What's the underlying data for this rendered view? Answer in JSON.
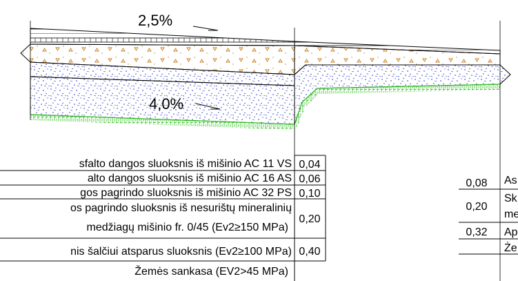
{
  "slopes": {
    "top": "2,5%",
    "bottom": "4,0%"
  },
  "left_table": {
    "rows": [
      {
        "lines": [
          "sfalto dangos sluoksnis iš mišinio  AC 11 VS"
        ],
        "value": "0,04"
      },
      {
        "lines": [
          "alto dangos sluoksnis iš mišinio  AC 16 AS"
        ],
        "value": "0,06"
      },
      {
        "lines": [
          "gos pagrindo sluoksnis iš mišinio  AC 32 PS"
        ],
        "value": "0,10"
      },
      {
        "lines": [
          "os pagrindo sluoksnis iš nesurištų mineralinių",
          "medžiagų mišinio fr. 0/45 (Ev2≥150 MPa)"
        ],
        "value": "0,20"
      },
      {
        "lines": [
          "nis šalčiui atsparus sluoksnis (Ev2≥100 MPa)"
        ],
        "value": "0,40"
      },
      {
        "lines": [
          "Žemės sankasa (EV2>45 MPa)"
        ],
        "value": ""
      }
    ]
  },
  "right_table": {
    "rows": [
      {
        "value": "0,08",
        "lines": [
          "As"
        ]
      },
      {
        "value": "0,20",
        "lines": [
          "Sk",
          "me"
        ]
      },
      {
        "value": "0,32",
        "lines": [
          "Ap"
        ]
      },
      {
        "value": "",
        "lines": [
          "Że"
        ]
      }
    ]
  },
  "colors": {
    "line": "#000000",
    "gravel": "#1a2ec8",
    "grass": "#2fbf1f",
    "sand": "#c87a1a"
  }
}
